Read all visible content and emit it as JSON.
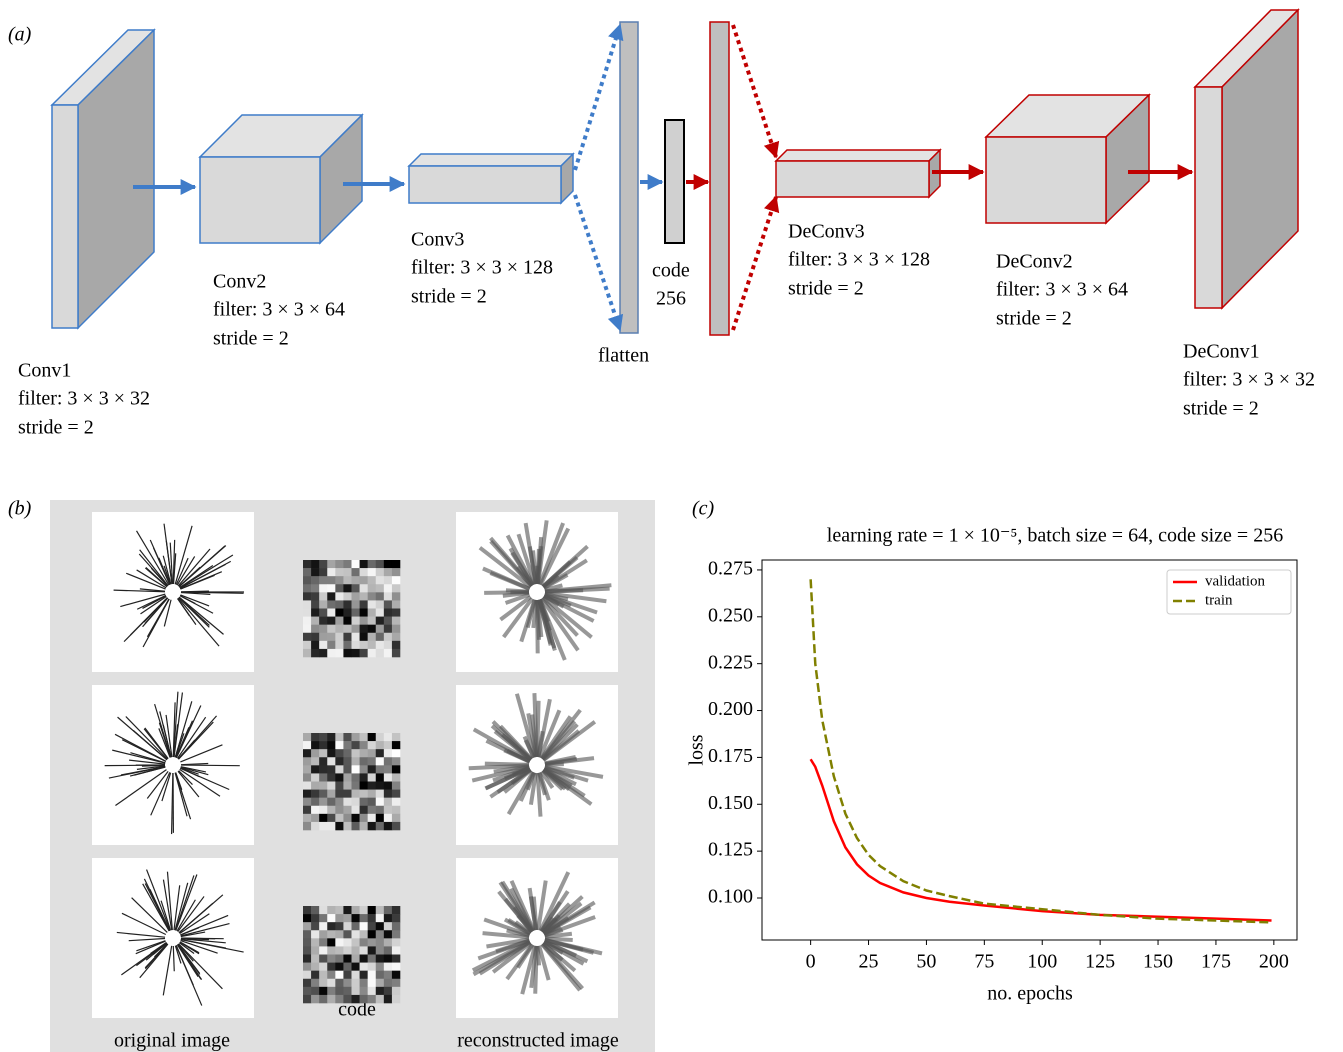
{
  "panel_a": {
    "label": "(a)",
    "layers": [
      {
        "name": "Conv1",
        "filter": "filter: 3 × 3 × 32",
        "stride": "stride = 2"
      },
      {
        "name": "Conv2",
        "filter": "filter: 3 × 3 × 64",
        "stride": "stride = 2"
      },
      {
        "name": "Conv3",
        "filter": "filter: 3 × 3 × 128",
        "stride": "stride = 2"
      },
      {
        "name": "DeConv3",
        "filter": "filter: 3 × 3 × 128",
        "stride": "stride = 2"
      },
      {
        "name": "DeConv2",
        "filter": "filter: 3 × 3 × 64",
        "stride": "stride = 2"
      },
      {
        "name": "DeConv1",
        "filter": "filter: 3 × 3 × 32",
        "stride": "stride = 2"
      }
    ],
    "flatten": "flatten",
    "code": "code",
    "code_size": "256"
  },
  "panel_b": {
    "label": "(b)",
    "columns": [
      "original image",
      "code",
      "reconstructed image"
    ]
  },
  "chart_data": {
    "type": "line",
    "label": "(c)",
    "title": "learning rate = 1 × 10⁻⁵, batch size = 64, code size = 256",
    "x_label": "no. epochs",
    "y_label": "loss",
    "x": [
      0,
      2,
      5,
      10,
      15,
      20,
      25,
      30,
      40,
      50,
      60,
      75,
      100,
      125,
      150,
      175,
      199
    ],
    "series": [
      {
        "name": "validation",
        "color": "#ff0000",
        "dash": false,
        "values": [
          0.174,
          0.17,
          0.16,
          0.141,
          0.127,
          0.118,
          0.112,
          0.108,
          0.103,
          0.1,
          0.098,
          0.096,
          0.093,
          0.091,
          0.09,
          0.089,
          0.088
        ]
      },
      {
        "name": "train",
        "color": "#808000",
        "dash": true,
        "values": [
          0.27,
          0.225,
          0.195,
          0.165,
          0.145,
          0.132,
          0.123,
          0.117,
          0.109,
          0.104,
          0.101,
          0.097,
          0.094,
          0.091,
          0.089,
          0.088,
          0.087
        ]
      }
    ],
    "xlim": [
      -21,
      210
    ],
    "ylim": [
      0.0776,
      0.2803
    ],
    "xticks": [
      0,
      25,
      50,
      75,
      100,
      125,
      150,
      175,
      200
    ],
    "yticks": [
      {
        "value": 0.1,
        "label": "0.100"
      },
      0.125,
      {
        "value": 0.15,
        "label": "0.150"
      },
      0.175,
      {
        "value": 0.2,
        "label": "0.200"
      },
      0.225,
      {
        "value": 0.25,
        "label": "0.250"
      },
      0.275
    ],
    "legend": "upper right"
  }
}
